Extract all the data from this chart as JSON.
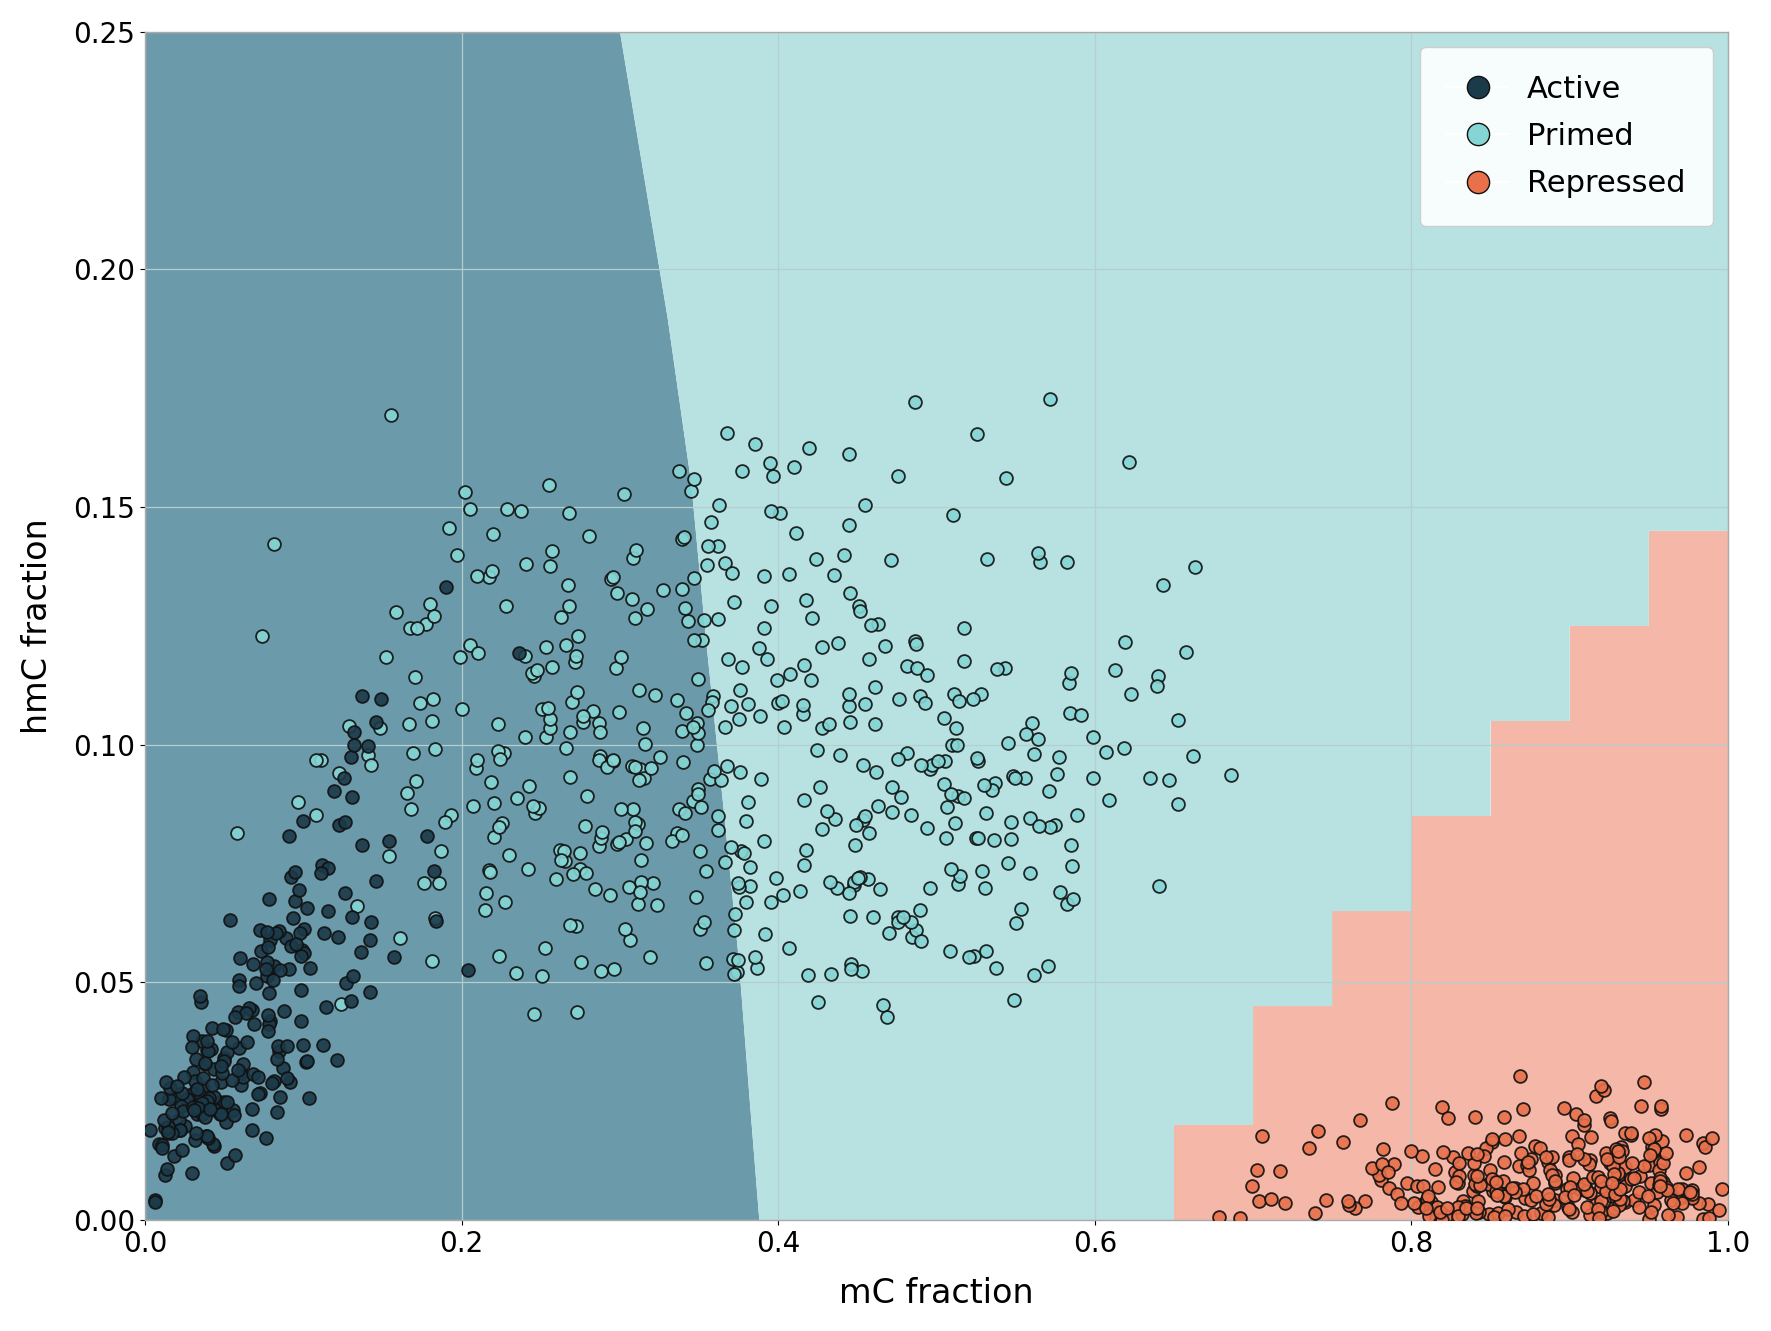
{
  "title": "",
  "xlabel": "mC fraction",
  "ylabel": "hmC fraction",
  "xlim": [
    0,
    1.0
  ],
  "ylim": [
    0,
    0.25
  ],
  "xticks": [
    0.0,
    0.2,
    0.4,
    0.6,
    0.8,
    1.0
  ],
  "yticks": [
    0.0,
    0.05,
    0.1,
    0.15,
    0.2,
    0.25
  ],
  "bg_color": "#ffffff",
  "grid_color": "#b5cece",
  "active_region_color": "#6b9aaa",
  "primed_region_color": "#b8e2e2",
  "repressed_region_color": "#f5b8a8",
  "active_dot_color": "#1b3a4a",
  "primed_dot_color": "#85d5d5",
  "repressed_dot_color": "#e8704a",
  "dot_edge_color": "#111111",
  "dot_size": 85,
  "dot_linewidth": 1.3,
  "dot_alpha": 0.9,
  "legend_labels": [
    "Active",
    "Primed",
    "Repressed"
  ],
  "active_curve_x": [
    0.3,
    0.315,
    0.33,
    0.345,
    0.355,
    0.365,
    0.375,
    0.382,
    0.388
  ],
  "active_curve_y": [
    0.25,
    0.22,
    0.19,
    0.155,
    0.12,
    0.088,
    0.055,
    0.025,
    0.0
  ],
  "repressed_steps_x": [
    0.6,
    0.65,
    0.65,
    0.7,
    0.7,
    0.75,
    0.75,
    0.8,
    0.8,
    0.85,
    0.85,
    0.9,
    0.9,
    0.95,
    0.95,
    1.0
  ],
  "repressed_steps_y": [
    0.0,
    0.0,
    0.02,
    0.02,
    0.045,
    0.045,
    0.065,
    0.065,
    0.085,
    0.085,
    0.105,
    0.105,
    0.125,
    0.125,
    0.145,
    0.145
  ],
  "seed": 42,
  "n_active": 220,
  "n_primed": 500,
  "n_repressed": 280
}
